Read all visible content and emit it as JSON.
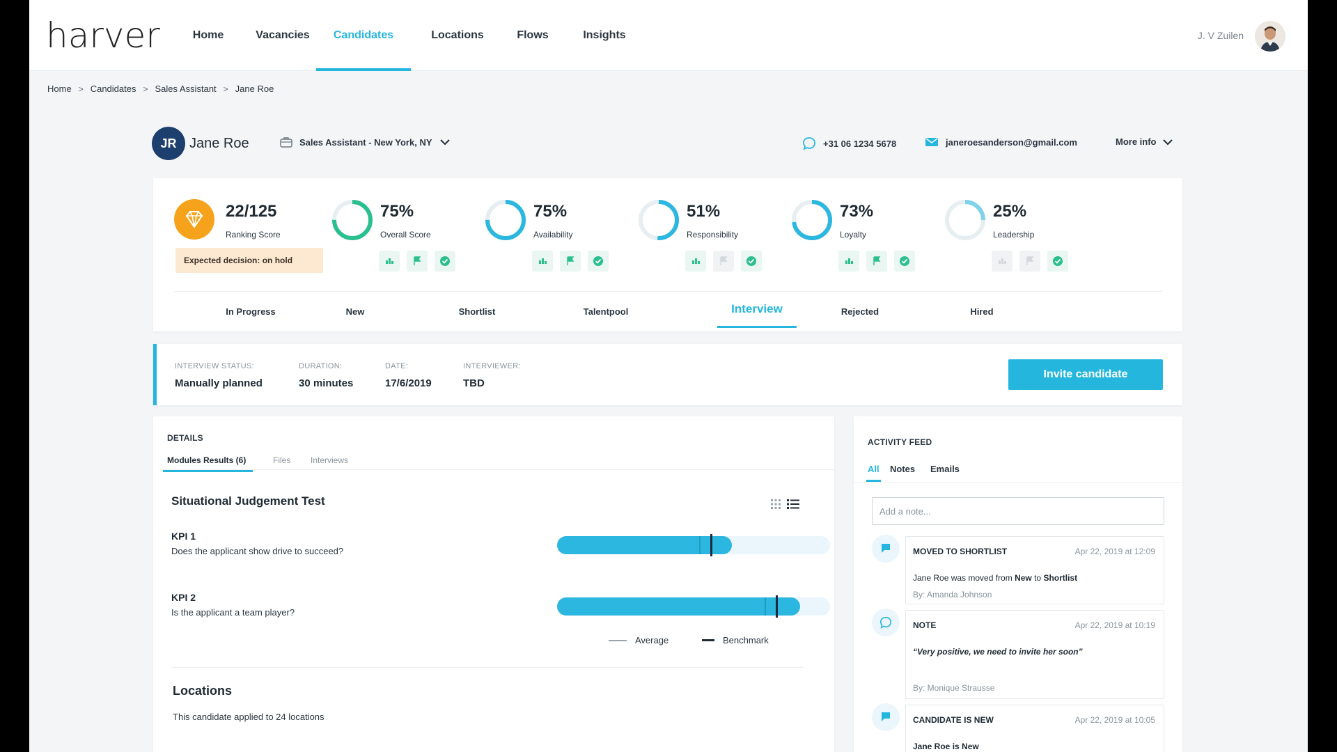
{
  "nav": {
    "logo": "harver",
    "items": [
      "Home",
      "Vacancies",
      "Candidates",
      "Locations",
      "Flows",
      "Insights"
    ],
    "active": "Candidates",
    "user": "J. V Zuilen"
  },
  "breadcrumb": [
    "Home",
    "Candidates",
    "Sales Assistant",
    "Jane Roe"
  ],
  "candidate": {
    "initials": "JR",
    "name": "Jane Roe",
    "vacancy": "Sales Assistant - New York, NY",
    "phone": "+31 06 1234 5678",
    "email": "janeroesanderson@gmail.com",
    "more_info": "More info"
  },
  "scores": {
    "ranking": {
      "value": "22/125",
      "label": "Ranking Score"
    },
    "decision": "Expected decision: on hold",
    "metrics": [
      {
        "value": "75%",
        "label": "Overall Score",
        "percent": 75,
        "color": "#2bbf8f",
        "flags": [
          true,
          true,
          true
        ]
      },
      {
        "value": "75%",
        "label": "Availability",
        "percent": 75,
        "color": "#2bb7df",
        "flags": [
          true,
          true,
          true
        ]
      },
      {
        "value": "51%",
        "label": "Responsibility",
        "percent": 51,
        "color": "#2bb7df",
        "flags": [
          true,
          false,
          true
        ]
      },
      {
        "value": "73%",
        "label": "Loyalty",
        "percent": 73,
        "color": "#2bb7df",
        "flags": [
          true,
          true,
          true
        ]
      },
      {
        "value": "25%",
        "label": "Leadership",
        "percent": 25,
        "color": "#7fd2ea",
        "flags": [
          false,
          false,
          true
        ]
      }
    ]
  },
  "stages": [
    "In Progress",
    "New",
    "Shortlist",
    "Talentpool",
    "Interview",
    "Rejected",
    "Hired"
  ],
  "active_stage": "Interview",
  "interview": {
    "status_label": "INTERVIEW STATUS:",
    "status": "Manually planned",
    "duration_label": "DURATION:",
    "duration": "30 minutes",
    "date_label": "DATE:",
    "date": "17/6/2019",
    "interviewer_label": "INTERVIEWER:",
    "interviewer": "TBD",
    "invite": "Invite candidate"
  },
  "details": {
    "title": "DETAILS",
    "tabs": [
      "Modules Results (6)",
      "Files",
      "Interviews"
    ],
    "module_title": "Situational Judgement Test",
    "kpis": [
      {
        "title": "KPI 1",
        "question": "Does the applicant show drive to succeed?",
        "score": 0.64,
        "benchmark": 0.56
      },
      {
        "title": "KPI 2",
        "question": "Is the applicant a team player?",
        "score": 0.89,
        "benchmark": 0.8
      }
    ],
    "legend_average": "Average",
    "legend_benchmark": "Benchmark",
    "locations_title": "Locations",
    "locations_text": "This candidate applied to 24 locations"
  },
  "activity": {
    "title": "ACTIVITY FEED",
    "tabs": [
      "All",
      "Notes",
      "Emails"
    ],
    "note_placeholder": "Add a note...",
    "items": [
      {
        "type": "MOVED TO SHORTLIST",
        "time": "Apr 22, 2019 at 12:09",
        "body_prefix": "Jane Roe was moved from ",
        "body_from": "New",
        "body_mid": " to ",
        "body_to": "Shortlist",
        "by": "By: Amanda Johnson"
      },
      {
        "type": "NOTE",
        "time": "Apr 22, 2019 at 10:19",
        "quote": "“Very positive, we need to invite her soon”",
        "by": "By: Monique Strausse"
      },
      {
        "type": "CANDIDATE IS NEW",
        "time": "Apr 22, 2019 at 10:05",
        "body": "Jane Roe is New"
      }
    ]
  }
}
